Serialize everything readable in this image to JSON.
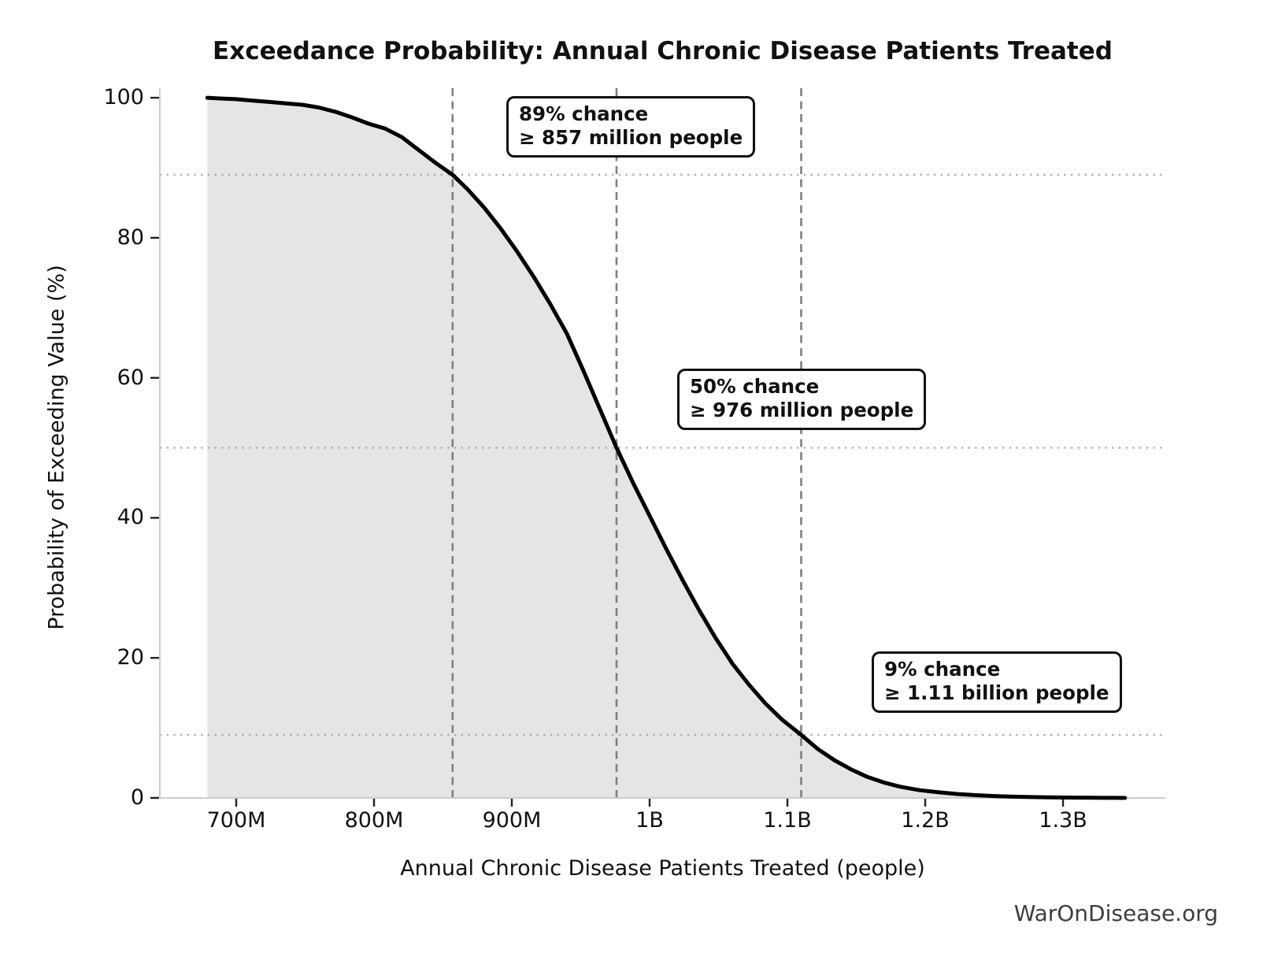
{
  "page": {
    "title": "Exceedance Probability: Annual Chronic Disease Patients Treated",
    "watermark": "WarOnDisease.org"
  },
  "chart_data": {
    "type": "area",
    "subtype": "exceedance-probability-curve",
    "title": "Exceedance Probability: Annual Chronic Disease Patients Treated",
    "xlabel": "Annual Chronic Disease Patients Treated (people)",
    "ylabel": "Probability of Exceeding Value (%)",
    "x_unit": "millions of people",
    "xlim_millions": [
      645,
      1374
    ],
    "ylim": [
      0,
      100
    ],
    "grid": "no full grid; dotted horizontal reference lines only at annotated probabilities",
    "legend": "none",
    "xticks": [
      {
        "label": "700M",
        "value_millions": 700
      },
      {
        "label": "800M",
        "value_millions": 800
      },
      {
        "label": "900M",
        "value_millions": 900
      },
      {
        "label": "1B",
        "value_millions": 1000
      },
      {
        "label": "1.1B",
        "value_millions": 1100
      },
      {
        "label": "1.2B",
        "value_millions": 1200
      },
      {
        "label": "1.3B",
        "value_millions": 1300
      }
    ],
    "yticks": [
      {
        "label": "0",
        "value": 0
      },
      {
        "label": "20",
        "value": 20
      },
      {
        "label": "40",
        "value": 40
      },
      {
        "label": "60",
        "value": 60
      },
      {
        "label": "80",
        "value": 80
      },
      {
        "label": "100",
        "value": 100
      }
    ],
    "series": [
      {
        "name": "Probability of exceeding value",
        "style": "thick black line with light gray fill to zero",
        "points_x_millions_y_pct": [
          [
            679,
            100.0
          ],
          [
            688,
            99.9
          ],
          [
            700,
            99.8
          ],
          [
            712,
            99.6
          ],
          [
            724,
            99.4
          ],
          [
            736,
            99.2
          ],
          [
            748,
            99.0
          ],
          [
            760,
            98.6
          ],
          [
            772,
            98.0
          ],
          [
            784,
            97.2
          ],
          [
            796,
            96.3
          ],
          [
            808,
            95.6
          ],
          [
            820,
            94.4
          ],
          [
            832,
            92.6
          ],
          [
            844,
            90.8
          ],
          [
            857,
            89.0
          ],
          [
            868,
            86.9
          ],
          [
            880,
            84.3
          ],
          [
            892,
            81.3
          ],
          [
            904,
            78.0
          ],
          [
            916,
            74.4
          ],
          [
            928,
            70.5
          ],
          [
            940,
            66.3
          ],
          [
            952,
            61.0
          ],
          [
            964,
            55.5
          ],
          [
            976,
            50.0
          ],
          [
            988,
            45.0
          ],
          [
            1000,
            40.3
          ],
          [
            1012,
            35.6
          ],
          [
            1024,
            31.1
          ],
          [
            1036,
            26.8
          ],
          [
            1048,
            22.8
          ],
          [
            1060,
            19.2
          ],
          [
            1072,
            16.2
          ],
          [
            1084,
            13.5
          ],
          [
            1096,
            11.2
          ],
          [
            1110,
            9.0
          ],
          [
            1122,
            7.0
          ],
          [
            1134,
            5.4
          ],
          [
            1146,
            4.1
          ],
          [
            1158,
            3.0
          ],
          [
            1170,
            2.2
          ],
          [
            1182,
            1.6
          ],
          [
            1196,
            1.1
          ],
          [
            1210,
            0.8
          ],
          [
            1224,
            0.55
          ],
          [
            1238,
            0.38
          ],
          [
            1252,
            0.26
          ],
          [
            1266,
            0.17
          ],
          [
            1280,
            0.11
          ],
          [
            1294,
            0.07
          ],
          [
            1308,
            0.04
          ],
          [
            1322,
            0.02
          ],
          [
            1336,
            0.01
          ],
          [
            1345,
            0.0
          ]
        ]
      }
    ],
    "annotations": [
      {
        "line1": "89% chance",
        "line2": "≥ 857 million people",
        "probability_pct": 89,
        "value_millions": 857
      },
      {
        "line1": "50% chance",
        "line2": "≥ 976 million people",
        "probability_pct": 50,
        "value_millions": 976
      },
      {
        "line1": "9% chance",
        "line2": "≥ 1.11 billion people",
        "probability_pct": 9,
        "value_millions": 1110
      }
    ],
    "reference_lines": {
      "vertical_dashed_x_millions": [
        857,
        976,
        1110
      ],
      "horizontal_dotted_probability_pct": [
        89,
        50,
        9
      ]
    },
    "colors": {
      "curve": "#000000",
      "fill": "#e5e5e5",
      "dashed_line": "#7f7f7f",
      "dotted_line": "#a6a6a6",
      "spine": "#cccccc",
      "tick_mark": "#222222",
      "text": "#111111",
      "watermark": "#3d3d3d",
      "annotation_bg": "rgba(255,255,255,0.9)"
    }
  }
}
